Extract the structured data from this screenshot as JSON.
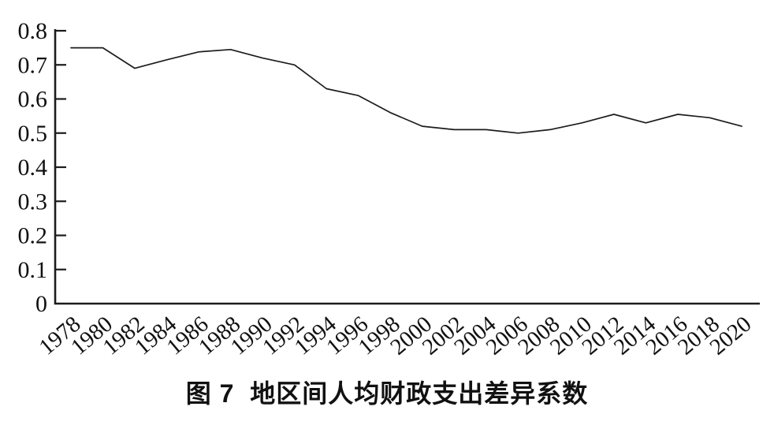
{
  "chart_data": {
    "type": "line",
    "title": "图 7  地区间人均财政支出差异系数",
    "categories": [
      1978,
      1980,
      1982,
      1984,
      1986,
      1988,
      1990,
      1992,
      1994,
      1996,
      1998,
      2000,
      2002,
      2004,
      2006,
      2008,
      2010,
      2012,
      2014,
      2016,
      2018,
      2020
    ],
    "values": [
      0.75,
      0.75,
      0.69,
      0.715,
      0.738,
      0.745,
      0.72,
      0.7,
      0.63,
      0.61,
      0.56,
      0.52,
      0.51,
      0.51,
      0.5,
      0.51,
      0.53,
      0.555,
      0.53,
      0.555,
      0.545,
      0.52
    ],
    "xlabel": "",
    "ylabel": "",
    "ylim": [
      0,
      0.8
    ],
    "yticks": [
      0,
      0.1,
      0.2,
      0.3,
      0.4,
      0.5,
      0.6,
      0.7,
      0.8
    ],
    "ytick_labels": [
      "0",
      "0.1",
      "0.2",
      "0.3",
      "0.4",
      "0.5",
      "0.6",
      "0.7",
      "0.8"
    ],
    "grid": false,
    "legend": "none",
    "line_color": "#1c1c1c",
    "axis_color": "#1c1c1c",
    "text_color": "#111111",
    "background_color": "#ffffff"
  }
}
